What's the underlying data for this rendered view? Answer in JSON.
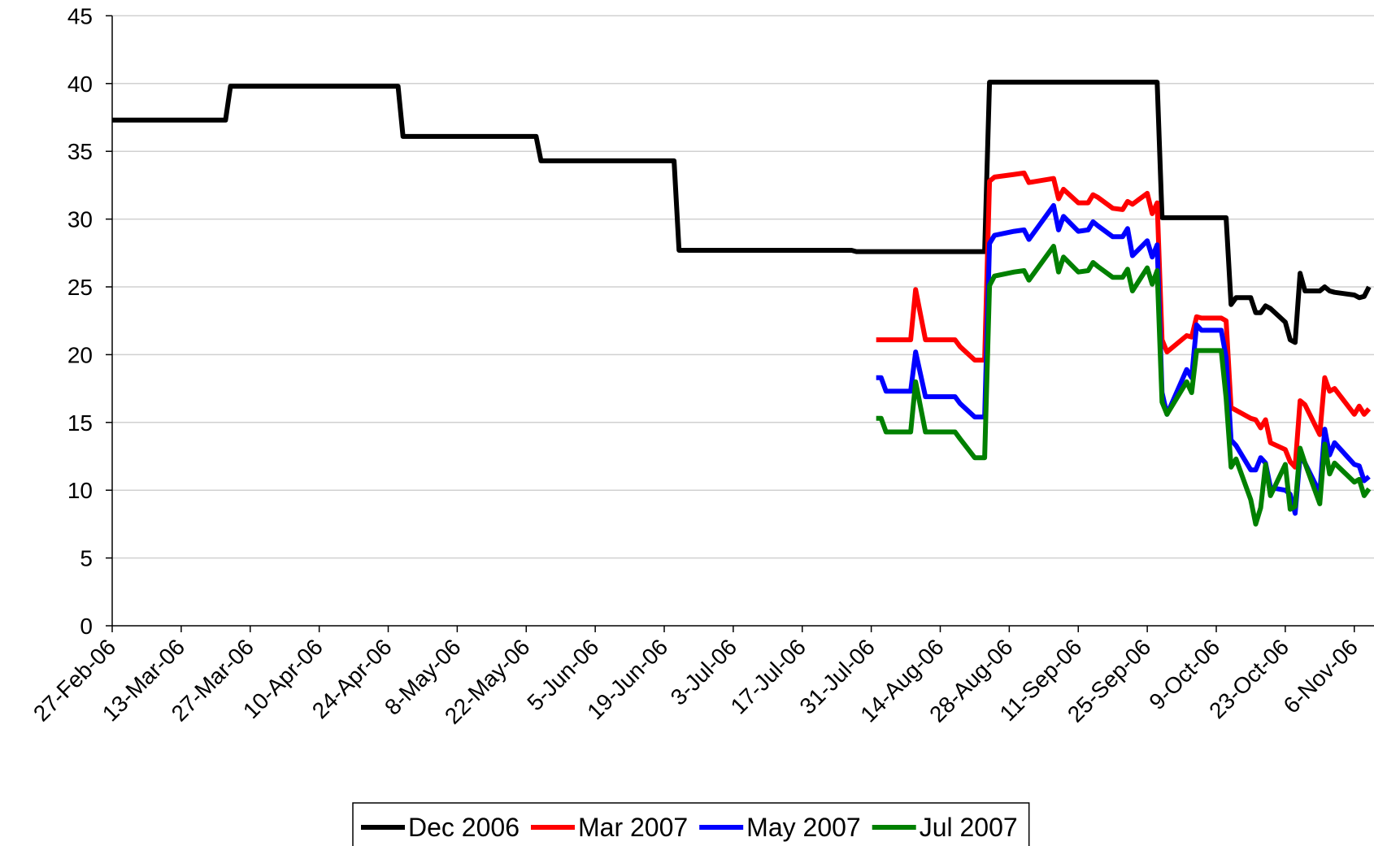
{
  "chart_data": {
    "type": "line",
    "x": [
      "2006-02-27",
      "2006-03-22",
      "2006-03-23",
      "2006-04-26",
      "2006-04-27",
      "2006-05-24",
      "2006-05-25",
      "2006-06-21",
      "2006-06-22",
      "2006-07-27",
      "2006-07-28",
      "2006-08-01",
      "2006-08-02",
      "2006-08-03",
      "2006-08-08",
      "2006-08-09",
      "2006-08-11",
      "2006-08-17",
      "2006-08-18",
      "2006-08-21",
      "2006-08-23",
      "2006-08-24",
      "2006-08-25",
      "2006-08-29",
      "2006-08-31",
      "2006-09-01",
      "2006-09-06",
      "2006-09-07",
      "2006-09-08",
      "2006-09-11",
      "2006-09-13",
      "2006-09-14",
      "2006-09-15",
      "2006-09-18",
      "2006-09-20",
      "2006-09-21",
      "2006-09-22",
      "2006-09-25",
      "2006-09-26",
      "2006-09-27",
      "2006-09-28",
      "2006-09-29",
      "2006-10-03",
      "2006-10-04",
      "2006-10-05",
      "2006-10-06",
      "2006-10-10",
      "2006-10-11",
      "2006-10-12",
      "2006-10-13",
      "2006-10-16",
      "2006-10-17",
      "2006-10-18",
      "2006-10-19",
      "2006-10-20",
      "2006-10-23",
      "2006-10-24",
      "2006-10-25",
      "2006-10-26",
      "2006-10-27",
      "2006-10-30",
      "2006-10-31",
      "2006-11-01",
      "2006-11-02",
      "2006-11-06",
      "2006-11-07",
      "2006-11-08",
      "2006-11-09"
    ],
    "series": [
      {
        "name": "Dec 2006",
        "color": "#000000",
        "values": [
          37.3,
          37.3,
          39.8,
          39.8,
          36.1,
          36.1,
          34.3,
          34.3,
          27.7,
          27.7,
          27.6,
          27.6,
          27.6,
          27.6,
          27.6,
          27.6,
          27.6,
          27.6,
          27.6,
          27.6,
          27.6,
          40.1,
          40.1,
          40.1,
          40.1,
          40.1,
          40.1,
          40.1,
          40.1,
          40.1,
          40.1,
          40.1,
          40.1,
          40.1,
          40.1,
          40.1,
          40.1,
          40.1,
          40.1,
          40.1,
          30.1,
          30.1,
          30.1,
          30.1,
          30.1,
          30.1,
          30.1,
          30.1,
          23.7,
          24.2,
          24.2,
          23.1,
          23.1,
          23.6,
          23.4,
          22.4,
          21.1,
          20.9,
          26.0,
          24.7,
          24.7,
          25.0,
          24.7,
          24.6,
          24.4,
          24.2,
          24.3,
          25.0
        ]
      },
      {
        "name": "Mar 2007",
        "color": "#ff0000",
        "values": [
          null,
          null,
          null,
          null,
          null,
          null,
          null,
          null,
          null,
          null,
          null,
          21.1,
          21.1,
          21.1,
          21.1,
          24.8,
          21.1,
          21.1,
          20.6,
          19.6,
          19.6,
          32.8,
          33.1,
          33.3,
          33.4,
          32.7,
          33.0,
          31.5,
          32.2,
          31.2,
          31.2,
          31.8,
          31.6,
          30.8,
          30.7,
          31.3,
          31.1,
          31.9,
          30.4,
          31.2,
          21.1,
          20.2,
          21.4,
          21.3,
          22.8,
          22.7,
          22.7,
          22.5,
          16.1,
          15.9,
          15.3,
          15.2,
          14.6,
          15.2,
          13.5,
          13.0,
          12.1,
          11.7,
          16.6,
          16.3,
          14.1,
          18.3,
          17.3,
          17.5,
          15.6,
          16.2,
          15.6,
          16.0
        ]
      },
      {
        "name": "May 2007",
        "color": "#0000ff",
        "values": [
          null,
          null,
          null,
          null,
          null,
          null,
          null,
          null,
          null,
          null,
          null,
          18.3,
          18.3,
          17.3,
          17.3,
          20.2,
          16.9,
          16.9,
          16.4,
          15.4,
          15.4,
          28.2,
          28.8,
          29.1,
          29.2,
          28.5,
          31.0,
          29.2,
          30.2,
          29.1,
          29.2,
          29.8,
          29.5,
          28.7,
          28.7,
          29.3,
          27.3,
          28.4,
          27.2,
          28.1,
          17.2,
          15.6,
          18.9,
          18.3,
          22.2,
          21.8,
          21.8,
          19.8,
          13.7,
          13.3,
          11.5,
          11.5,
          12.4,
          12.0,
          10.2,
          10.0,
          9.7,
          8.3,
          12.5,
          12.0,
          9.8,
          14.5,
          12.6,
          13.5,
          11.9,
          11.8,
          10.7,
          11.0
        ]
      },
      {
        "name": "Jul 2007",
        "color": "#008000",
        "values": [
          null,
          null,
          null,
          null,
          null,
          null,
          null,
          null,
          null,
          null,
          null,
          15.3,
          15.3,
          14.3,
          14.3,
          18.0,
          14.3,
          14.3,
          13.8,
          12.4,
          12.4,
          25.1,
          25.8,
          26.1,
          26.2,
          25.5,
          28.0,
          26.1,
          27.2,
          26.1,
          26.2,
          26.8,
          26.5,
          25.7,
          25.7,
          26.3,
          24.7,
          26.4,
          25.2,
          26.2,
          16.5,
          15.6,
          18.0,
          17.2,
          20.3,
          20.3,
          20.3,
          16.8,
          11.7,
          12.3,
          9.3,
          7.5,
          8.7,
          11.9,
          9.6,
          11.9,
          8.6,
          8.8,
          13.1,
          12.0,
          9.0,
          13.4,
          11.2,
          12.0,
          10.6,
          10.8,
          9.6,
          10.1
        ]
      }
    ],
    "xlim": [
      "2006-02-27",
      "2006-11-10"
    ],
    "xticks": [
      {
        "value": "2006-02-27",
        "label": "27-Feb-06"
      },
      {
        "value": "2006-03-13",
        "label": "13-Mar-06"
      },
      {
        "value": "2006-03-27",
        "label": "27-Mar-06"
      },
      {
        "value": "2006-04-10",
        "label": "10-Apr-06"
      },
      {
        "value": "2006-04-24",
        "label": "24-Apr-06"
      },
      {
        "value": "2006-05-08",
        "label": "8-May-06"
      },
      {
        "value": "2006-05-22",
        "label": "22-May-06"
      },
      {
        "value": "2006-06-05",
        "label": "5-Jun-06"
      },
      {
        "value": "2006-06-19",
        "label": "19-Jun-06"
      },
      {
        "value": "2006-07-03",
        "label": "3-Jul-06"
      },
      {
        "value": "2006-07-17",
        "label": "17-Jul-06"
      },
      {
        "value": "2006-07-31",
        "label": "31-Jul-06"
      },
      {
        "value": "2006-08-14",
        "label": "14-Aug-06"
      },
      {
        "value": "2006-08-28",
        "label": "28-Aug-06"
      },
      {
        "value": "2006-09-11",
        "label": "11-Sep-06"
      },
      {
        "value": "2006-09-25",
        "label": "25-Sep-06"
      },
      {
        "value": "2006-10-09",
        "label": "9-Oct-06"
      },
      {
        "value": "2006-10-23",
        "label": "23-Oct-06"
      },
      {
        "value": "2006-11-06",
        "label": "6-Nov-06"
      }
    ],
    "ylim": [
      0,
      45
    ],
    "yticks": [
      0,
      5,
      10,
      15,
      20,
      25,
      30,
      35,
      40,
      45
    ],
    "grid": true,
    "legend": "bottom"
  }
}
